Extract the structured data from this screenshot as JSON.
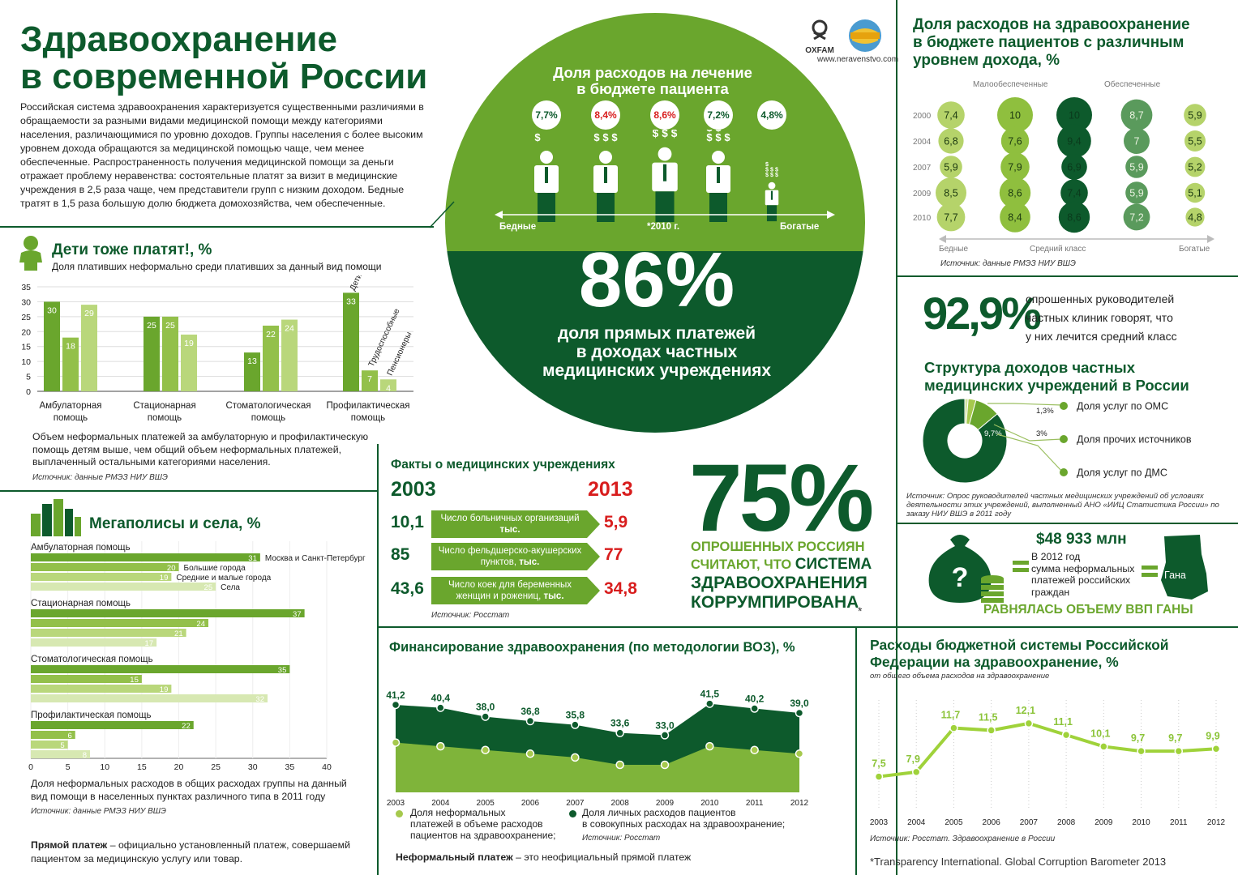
{
  "header": {
    "title_l1": "Здравоохранение",
    "title_l2": "в современной России",
    "intro": "Российская система здравоохранения характеризуется существенными различиями в обращаемости за разными видами медицинской помощи между категориями населения, различающимися по уровню доходов. Группы населения с более высоким уровнем дохода обращаются за медицинской помощью чаще, чем менее обеспеченные. Распространенность получения медицинской помощи за деньги отражает проблему неравенства: состоятельные платят за визит в медицинские учреждения в 2,5 раза чаще, чем представители групп с низким доходом. Бедные тратят в 1,5 раза большую долю бюджета домохозяйства, чем обеспеченные.",
    "oxfam": "OXFAM",
    "site": "www.neravenstvo.com"
  },
  "circle": {
    "title_l1": "Доля расходов на лечение",
    "title_l2": "в бюджете пациента",
    "values": [
      "7,7%",
      "8,4%",
      "8,6%",
      "7,2%",
      "4,8%"
    ],
    "value_colors": [
      "#0d5a2c",
      "#d81d1d",
      "#d81d1d",
      "#0d5a2c",
      "#0d5a2c"
    ],
    "axis_left": "Бедные",
    "axis_mid": "*2010 г.",
    "axis_right": "Богатые",
    "big": "86%",
    "big_l1": "доля прямых платежей",
    "big_l2": "в доходах частных",
    "big_l3": "медицинских учреждениях"
  },
  "children": {
    "title": "Дети тоже платят!, %",
    "subtitle": "Доля плативших неформально среди плативших за данный вид помощи",
    "legend": [
      "Дети",
      "Трудоспособные",
      "Пенсионеры"
    ],
    "note": "Объем неформальных платежей за амбулаторную и профилактическую помощь детям выше, чем общий объем неформальных платежей, выплаченный остальными категориями населения.",
    "source": "Источник: данные РМЭЗ НИУ ВШЭ"
  },
  "megapolis": {
    "title": "Мегаполисы и села, %",
    "legend": [
      "Москва и Санкт-Петербург",
      "Большие города",
      "Средние и малые города",
      "Села"
    ],
    "note": "Доля неформальных расходов в общих расходах группы на данный вид помощи в населенных пунктах различного типа в 2011 году",
    "source": "Источник: данные РМЭЗ НИУ ВШЭ",
    "def_bold": "Прямой платеж",
    "def_text": " – официально установленный платеж, совершаемй пациентом за медицинскую услугу или товар."
  },
  "facts": {
    "title": "Факты о медицинских учреждениях",
    "year_a": "2003",
    "year_b": "2013",
    "rows": [
      {
        "a": "10,1",
        "label": "Число больничных организаций",
        "unit": "тыс.",
        "b": "5,9"
      },
      {
        "a": "85",
        "label": "Число фельдшерско-акушерских пунктов,",
        "unit": "тыс.",
        "b": "77"
      },
      {
        "a": "43,6",
        "label": "Число коек для беременных женщин и рожениц,",
        "unit": "тыс.",
        "b": "34,8"
      }
    ],
    "source": "Источник: Росстат"
  },
  "corruption": {
    "big": "75%",
    "l1": "ОПРОШЕННЫХ РОССИЯН",
    "l2a": "СЧИТАЮТ, ЧТО ",
    "l2b": "СИСТЕМА",
    "l3": "ЗДРАВООХРАНЕНИЯ",
    "l4": "КОРРУМПИРОВАНА",
    "mark": "*"
  },
  "budget_share": {
    "title_l1": "Доля расходов на здравоохранение",
    "title_l2": "в бюджете пациентов с различным",
    "title_l3": "уровнем дохода, %",
    "col_label_a": "Малообеспеченные",
    "col_label_b": "Обеспеченные",
    "axis_left": "Бедные",
    "axis_mid": "Средний класс",
    "axis_right": "Богатые",
    "source": "Источник: данные РМЭЗ НИУ ВШЭ"
  },
  "clinics": {
    "big": "92,9%",
    "text_l1": "опрошенных руководителей",
    "text_l2": "частных клиник говорят, что",
    "text_l3": "у них лечится средний класс",
    "struct_title_l1": "Структура доходов частных",
    "struct_title_l2": "медицинских учреждений в России",
    "legend": [
      "Доля услуг по ОМС",
      "Доля прочих источников",
      "Доля услуг по ДМС"
    ],
    "source": "Источник: Опрос руководителей частных медицинских учреждений об условиях деятельности этих учреждений, выполненный АНО «ИИЦ Статистика России» по заказу НИУ ВШЭ в 2011 году"
  },
  "ghana": {
    "amount": "$48 933 млн",
    "text_l1": "В 2012 год",
    "text_l2": "сумма неформальных",
    "text_l3": "платежей российских",
    "text_l4": "граждан",
    "country": "Гана",
    "caption": "РАВНЯЛАСЬ ОБЪЕМУ ВВП ГАНЫ"
  },
  "financing": {
    "title": "Финансирование здравоохранения (по методологии ВОЗ), %",
    "legend_a_l1": "Доля неформальных",
    "legend_a_l2": "платежей в объеме расходов",
    "legend_a_l3": "пациентов на здравоохранение;",
    "legend_b_l1": "Доля личных расходов пациентов",
    "legend_b_l2": "в совокупных расходах на здравоохранение;",
    "source": "Источник: Росстат",
    "def_bold": "Неформальный платеж",
    "def_text": " – это неофициальный прямой платеж"
  },
  "budget_system": {
    "title_l1": "Расходы бюджетной системы Российской",
    "title_l2": "Федерации на здравоохранение, %",
    "subtitle": "от общего объема расходов на здравоохранение",
    "source": "Источник: Росстат. Здравоохранение в России",
    "footnote": "*Transparency International. Global Corruption Barometer 2013"
  },
  "chart_data": [
    {
      "type": "bar",
      "title": "Дети тоже платят!, %",
      "categories": [
        "Амбулаторная помощь",
        "Стационарная помощь",
        "Стоматологическая помощь",
        "Профилактическая помощь"
      ],
      "series": [
        {
          "name": "Дети",
          "values": [
            30,
            25,
            13,
            33
          ]
        },
        {
          "name": "Трудоспособные",
          "values": [
            18,
            25,
            22,
            7
          ]
        },
        {
          "name": "Пенсионеры",
          "values": [
            29,
            19,
            24,
            4
          ]
        }
      ],
      "ylim": [
        0,
        35
      ],
      "yticks": [
        0,
        5,
        10,
        15,
        20,
        25,
        30,
        35
      ]
    },
    {
      "type": "bar",
      "orientation": "horizontal",
      "title": "Мегаполисы и села, %",
      "categories": [
        "Амбулаторная помощь",
        "Стационарная помощь",
        "Стоматологическая помощь",
        "Профилактическая помощь"
      ],
      "series": [
        {
          "name": "Москва и Санкт-Петербург",
          "values": [
            31,
            37,
            35,
            22
          ]
        },
        {
          "name": "Большие города",
          "values": [
            20,
            24,
            15,
            6
          ]
        },
        {
          "name": "Средние и малые города",
          "values": [
            19,
            21,
            19,
            5
          ]
        },
        {
          "name": "Села",
          "values": [
            25,
            17,
            32,
            8
          ]
        }
      ],
      "xlim": [
        0,
        40
      ],
      "xticks": [
        0,
        5,
        10,
        15,
        20,
        25,
        30,
        35,
        40
      ]
    },
    {
      "type": "heatmap",
      "title": "Доля расходов на здравоохранение в бюджете пациентов с различным уровнем дохода, %",
      "rows": [
        "2000",
        "2004",
        "2007",
        "2009",
        "2010"
      ],
      "values": [
        [
          7.4,
          10,
          10,
          8.7,
          5.9
        ],
        [
          6.8,
          7.6,
          9.4,
          7,
          5.5
        ],
        [
          5.9,
          7.9,
          6.9,
          5.9,
          5.2
        ],
        [
          8.5,
          8.6,
          7.4,
          5.9,
          5.1
        ],
        [
          7.7,
          8.4,
          8.6,
          7.2,
          4.8
        ]
      ],
      "labels": [
        [
          "7,4",
          "10",
          "10",
          "8,7",
          "5,9"
        ],
        [
          "6,8",
          "7,6",
          "9,4",
          "7",
          "5,5"
        ],
        [
          "5,9",
          "7,9",
          "6,9",
          "5,9",
          "5,2"
        ],
        [
          "8,5",
          "8,6",
          "7,4",
          "5,9",
          "5,1"
        ],
        [
          "7,7",
          "8,4",
          "8,6",
          "7,2",
          "4,8"
        ]
      ],
      "col_colors": [
        "#b5d36a",
        "#8fbf3e",
        "#0d5a2c",
        "#5a9a5c",
        "#b5d36a"
      ]
    },
    {
      "type": "pie",
      "title": "Структура доходов частных медицинских учреждений в России",
      "slices": [
        {
          "label": "Доля услуг по ОМС",
          "value": 1.3,
          "text": "1,3%"
        },
        {
          "label": "Доля прочих источников",
          "value": 3,
          "text": "3%"
        },
        {
          "label": "Доля услуг по ДМС",
          "value": 9.7,
          "text": "9,7%"
        },
        {
          "label": "",
          "value": 86,
          "text": ""
        }
      ]
    },
    {
      "type": "area",
      "title": "Финансирование здравоохранения (по методологии ВОЗ), %",
      "x": [
        "2003",
        "2004",
        "2005",
        "2006",
        "2007",
        "2008",
        "2009",
        "2010",
        "2011",
        "2012"
      ],
      "series": [
        {
          "name": "Доля личных расходов пациентов в совокупных расходах на здравоохранение",
          "values": [
            41.2,
            40.4,
            38.0,
            36.8,
            35.8,
            33.6,
            33.0,
            41.5,
            40.2,
            39.0
          ],
          "labels": [
            "41,2",
            "40,4",
            "38,0",
            "36,8",
            "35,8",
            "33,6",
            "33,0",
            "41,5",
            "40,2",
            "39,0"
          ]
        },
        {
          "name": "Доля неформальных платежей в объеме расходов пациентов на здравоохранение",
          "values": [
            31,
            30,
            29,
            28,
            27,
            25,
            25,
            30,
            29,
            28
          ]
        }
      ],
      "ylim": [
        18,
        46
      ]
    },
    {
      "type": "line",
      "title": "Расходы бюджетной системы Российской Федерации на здравоохранение, %",
      "x": [
        "2003",
        "2004",
        "2005",
        "2006",
        "2007",
        "2008",
        "2009",
        "2010",
        "2011",
        "2012"
      ],
      "values": [
        7.5,
        7.9,
        11.7,
        11.5,
        12.1,
        11.1,
        10.1,
        9.7,
        9.7,
        9.9
      ],
      "labels": [
        "7,5",
        "7,9",
        "11,7",
        "11,5",
        "12,1",
        "11,1",
        "10,1",
        "9,7",
        "9,7",
        "9,9"
      ],
      "ylim": [
        6,
        13
      ]
    }
  ]
}
